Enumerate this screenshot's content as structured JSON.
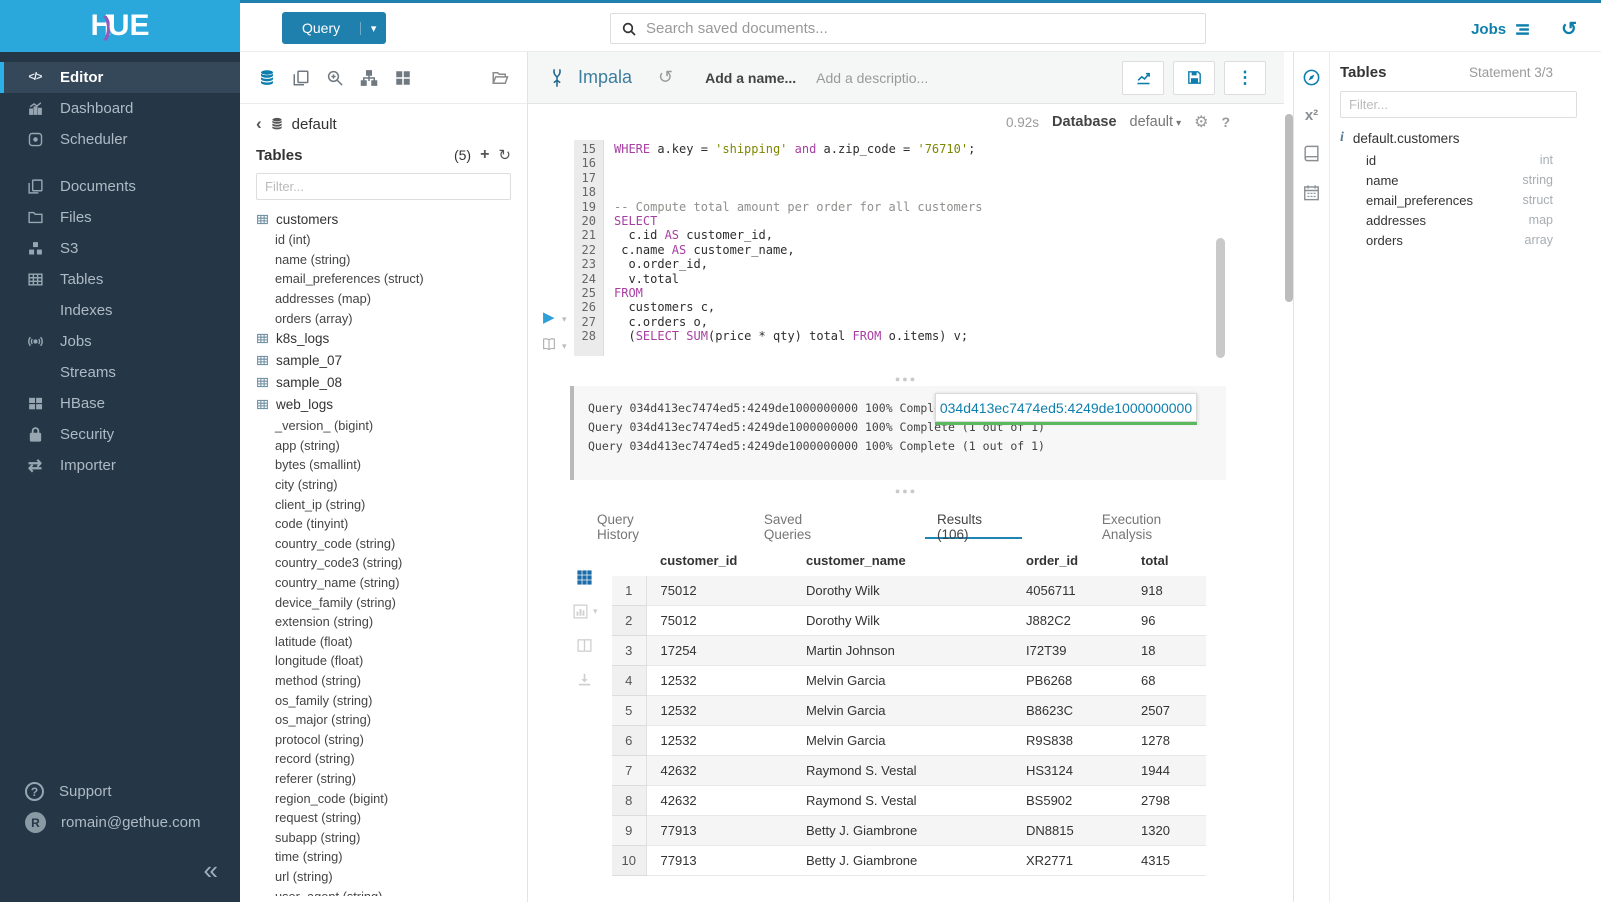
{
  "colors": {
    "accent": "#0e7fad",
    "brand": "#2aa8dc",
    "sidebar_bg": "#253746",
    "keyword": "#a73fa3",
    "string_literal": "#7d8700",
    "comment": "#8e908c",
    "progress_green": "#5cb85c",
    "active_grid_blue": "#1b6ca8"
  },
  "topbar": {
    "query_button": "Query",
    "search_placeholder": "Search saved documents...",
    "jobs_label": "Jobs"
  },
  "sidebar": {
    "logo_text_1": "H",
    "logo_text_2": "UE",
    "items": [
      {
        "icon": "code-icon",
        "label": "Editor",
        "active": true
      },
      {
        "icon": "dashboard-icon",
        "label": "Dashboard"
      },
      {
        "icon": "scheduler-icon",
        "label": "Scheduler"
      },
      {
        "spacer": true
      },
      {
        "icon": "documents-icon",
        "label": "Documents"
      },
      {
        "icon": "files-icon",
        "label": "Files"
      },
      {
        "icon": "s3-icon",
        "label": "S3"
      },
      {
        "icon": "tables-icon",
        "label": "Tables"
      },
      {
        "icon": "indexes-icon",
        "label": "Indexes"
      },
      {
        "icon": "jobs-icon",
        "label": "Jobs"
      },
      {
        "icon": "streams-icon",
        "label": "Streams"
      },
      {
        "icon": "hbase-icon",
        "label": "HBase"
      },
      {
        "icon": "security-icon",
        "label": "Security"
      },
      {
        "icon": "importer-icon",
        "label": "Importer"
      }
    ],
    "footer": [
      {
        "icon": "help-icon",
        "label": "Support"
      },
      {
        "avatar": "R",
        "label": "romain@gethue.com"
      }
    ]
  },
  "assist": {
    "toolbar_icons": [
      "database-icon",
      "documents-icon",
      "zoom-plus-icon",
      "sitemap-icon",
      "widgets-icon"
    ],
    "toolbar_active": "database-icon",
    "folder_icon": "folder-open-icon",
    "breadcrumb_db": "default",
    "tables_title": "Tables",
    "tables_count": "(5)",
    "filter_placeholder": "Filter...",
    "tables": [
      {
        "name": "customers",
        "columns": [
          "id (int)",
          "name (string)",
          "email_preferences (struct)",
          "addresses (map)",
          "orders (array)"
        ]
      },
      {
        "name": "k8s_logs",
        "columns": []
      },
      {
        "name": "sample_07",
        "columns": []
      },
      {
        "name": "sample_08",
        "columns": []
      },
      {
        "name": "web_logs",
        "columns": [
          "_version_ (bigint)",
          "app (string)",
          "bytes (smallint)",
          "city (string)",
          "client_ip (string)",
          "code (tinyint)",
          "country_code (string)",
          "country_code3 (string)",
          "country_name (string)",
          "device_family (string)",
          "extension (string)",
          "latitude (float)",
          "longitude (float)",
          "method (string)",
          "os_family (string)",
          "os_major (string)",
          "protocol (string)",
          "record (string)",
          "referer (string)",
          "region_code (bigint)",
          "request (string)",
          "subapp (string)",
          "time (string)",
          "url (string)",
          "user_agent (string)"
        ]
      }
    ]
  },
  "editor": {
    "engine": "Impala",
    "name_placeholder": "Add a name...",
    "desc_placeholder": "Add a descriptio...",
    "exec_time": "0.92s",
    "database_label": "Database",
    "database_value": "default",
    "first_line_number": 15,
    "code_lines": [
      [
        [
          "k",
          "WHERE"
        ],
        [
          "t",
          " a.key = "
        ],
        [
          "s",
          "'shipping'"
        ],
        [
          "t",
          " "
        ],
        [
          "k",
          "and"
        ],
        [
          "t",
          " a.zip_code = "
        ],
        [
          "s",
          "'76710'"
        ],
        [
          "t",
          ";"
        ]
      ],
      [],
      [],
      [],
      [
        [
          "c",
          "-- Compute total amount per order for all customers"
        ]
      ],
      [
        [
          "k",
          "SELECT"
        ]
      ],
      [
        [
          "t",
          "  c.id "
        ],
        [
          "k",
          "AS"
        ],
        [
          "t",
          " customer_id,"
        ]
      ],
      [
        [
          "t",
          " c.name "
        ],
        [
          "k",
          "AS"
        ],
        [
          "t",
          " customer_name,"
        ]
      ],
      [
        [
          "t",
          "  o.order_id,"
        ]
      ],
      [
        [
          "t",
          "  v.total"
        ]
      ],
      [
        [
          "k",
          "FROM"
        ]
      ],
      [
        [
          "t",
          "  customers c,"
        ]
      ],
      [
        [
          "t",
          "  c.orders o,"
        ]
      ],
      [
        [
          "t",
          "  ("
        ],
        [
          "k",
          "SELECT"
        ],
        [
          "t",
          " "
        ],
        [
          "k",
          "SUM"
        ],
        [
          "t",
          "(price * qty) total "
        ],
        [
          "k",
          "FROM"
        ],
        [
          "t",
          " o.items) v;"
        ]
      ]
    ]
  },
  "log": {
    "lines": [
      "Query 034d413ec7474ed5:4249de1000000000 100% Complete (1 out of 1)",
      "Query 034d413ec7474ed5:4249de1000000000 100% Complete (1 out of 1)",
      "Query 034d413ec7474ed5:4249de1000000000 100% Complete (1 out of 1)"
    ],
    "popup_query_id": "034d413ec7474ed5:4249de1000000000"
  },
  "tabs": [
    {
      "label": "Query History",
      "active": false
    },
    {
      "label": "Saved Queries",
      "active": false
    },
    {
      "label": "Results (106)",
      "active": true
    },
    {
      "label": "Execution Analysis",
      "active": false
    }
  ],
  "results": {
    "strip_icons": [
      "grid3-icon",
      "mini-chart-icon",
      "columns-icon",
      "download-icon"
    ],
    "strip_active": "grid3-icon",
    "columns": [
      "customer_id",
      "customer_name",
      "order_id",
      "total"
    ],
    "rows": [
      [
        "1",
        "75012",
        "Dorothy Wilk",
        "4056711",
        "918"
      ],
      [
        "2",
        "75012",
        "Dorothy Wilk",
        "J882C2",
        "96"
      ],
      [
        "3",
        "17254",
        "Martin Johnson",
        "I72T39",
        "18"
      ],
      [
        "4",
        "12532",
        "Melvin Garcia",
        "PB6268",
        "68"
      ],
      [
        "5",
        "12532",
        "Melvin Garcia",
        "B8623C",
        "2507"
      ],
      [
        "6",
        "12532",
        "Melvin Garcia",
        "R9S838",
        "1278"
      ],
      [
        "7",
        "42632",
        "Raymond S. Vestal",
        "HS3124",
        "1944"
      ],
      [
        "8",
        "42632",
        "Raymond S. Vestal",
        "BS5902",
        "2798"
      ],
      [
        "9",
        "77913",
        "Betty J. Giambrone",
        "DN8815",
        "1320"
      ],
      [
        "10",
        "77913",
        "Betty J. Giambrone",
        "XR2771",
        "4315"
      ]
    ]
  },
  "right_panel": {
    "strip_icons": [
      "assistant-compass-icon",
      "functions-icon",
      "language-reference-icon",
      "schedule-icon"
    ],
    "strip_active": "assistant-compass-icon",
    "title": "Tables",
    "statement": "Statement 3/3",
    "filter_placeholder": "Filter...",
    "table_name": "default.customers",
    "columns": [
      {
        "name": "id",
        "type": "int"
      },
      {
        "name": "name",
        "type": "string"
      },
      {
        "name": "email_preferences",
        "type": "struct"
      },
      {
        "name": "addresses",
        "type": "map"
      },
      {
        "name": "orders",
        "type": "array"
      }
    ]
  }
}
